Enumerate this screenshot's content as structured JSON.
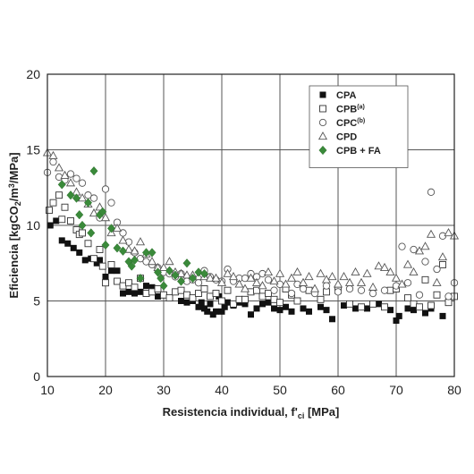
{
  "chart_data": {
    "type": "scatter",
    "xlabel": {
      "main": "Resistencia individual, f'",
      "sub": "ci",
      "unit": " [MPa]"
    },
    "ylabel": {
      "main": "Eficiencia [kgCO",
      "sub2": "2",
      "mid": "/m",
      "sup3": "3",
      "end": "/MPa]"
    },
    "xlim": [
      10,
      80
    ],
    "ylim": [
      0,
      20
    ],
    "xticks": [
      10,
      20,
      30,
      40,
      50,
      60,
      70,
      80
    ],
    "yticks": [
      0,
      5,
      10,
      15,
      20
    ],
    "grid": true,
    "legend_position": "top-right",
    "colors": {
      "green": "#3a8a3a",
      "black": "#111111",
      "grid": "#555555"
    },
    "series": [
      {
        "name": "CPA",
        "sup": "",
        "marker": "filled-square",
        "points": [
          [
            10.5,
            10
          ],
          [
            11.5,
            10.3
          ],
          [
            12.5,
            9
          ],
          [
            13.5,
            8.8
          ],
          [
            14.5,
            8.5
          ],
          [
            15.5,
            8.2
          ],
          [
            16.5,
            7.7
          ],
          [
            17.5,
            7.8
          ],
          [
            18.5,
            7.5
          ],
          [
            19,
            7.7
          ],
          [
            20,
            6.6
          ],
          [
            21,
            7
          ],
          [
            22,
            7
          ],
          [
            23,
            5.5
          ],
          [
            24,
            5.6
          ],
          [
            25,
            5.5
          ],
          [
            26,
            5.6
          ],
          [
            27,
            6
          ],
          [
            28,
            5.9
          ],
          [
            29,
            5.3
          ],
          [
            31,
            5.2
          ],
          [
            33,
            5
          ],
          [
            34,
            4.9
          ],
          [
            35,
            5
          ],
          [
            36,
            4.6
          ],
          [
            36.5,
            4.9
          ],
          [
            37,
            4.5
          ],
          [
            37.5,
            4.3
          ],
          [
            38,
            4.8
          ],
          [
            38.5,
            4.1
          ],
          [
            39,
            4.3
          ],
          [
            39.5,
            5.3
          ],
          [
            40,
            4.3
          ],
          [
            40.5,
            4.6
          ],
          [
            41,
            4.9
          ],
          [
            42,
            4.7
          ],
          [
            43,
            4.9
          ],
          [
            44,
            4.8
          ],
          [
            45,
            4.1
          ],
          [
            46,
            4.5
          ],
          [
            47,
            4.8
          ],
          [
            48,
            4.9
          ],
          [
            49,
            4.5
          ],
          [
            50,
            4.4
          ],
          [
            51,
            4.6
          ],
          [
            52,
            4.3
          ],
          [
            54,
            4.5
          ],
          [
            55,
            4.3
          ],
          [
            57,
            4.6
          ],
          [
            58,
            4.4
          ],
          [
            59,
            3.8
          ],
          [
            61,
            4.7
          ],
          [
            63,
            4.5
          ],
          [
            65,
            4.5
          ],
          [
            67,
            4.8
          ],
          [
            69,
            4.4
          ],
          [
            70,
            3.7
          ],
          [
            70.5,
            4
          ],
          [
            72,
            4.5
          ],
          [
            73,
            4.4
          ],
          [
            75,
            4.2
          ],
          [
            76,
            4.5
          ],
          [
            78,
            4
          ],
          [
            79,
            4.9
          ]
        ]
      },
      {
        "name": "CPB",
        "sup": "(a)",
        "marker": "open-square",
        "points": [
          [
            10.3,
            11
          ],
          [
            11,
            11.5
          ],
          [
            12,
            12
          ],
          [
            12.5,
            10.4
          ],
          [
            13,
            11.2
          ],
          [
            14,
            10.3
          ],
          [
            15,
            9.7
          ],
          [
            15.5,
            9.4
          ],
          [
            16,
            9.5
          ],
          [
            17,
            8.8
          ],
          [
            18,
            7.8
          ],
          [
            19,
            8.4
          ],
          [
            19.5,
            7.3
          ],
          [
            20,
            6.2
          ],
          [
            21,
            7.4
          ],
          [
            22,
            6.3
          ],
          [
            23,
            6
          ],
          [
            24,
            6.2
          ],
          [
            25,
            5.9
          ],
          [
            26,
            6.5
          ],
          [
            27,
            5.5
          ],
          [
            28,
            5.6
          ],
          [
            29,
            5.8
          ],
          [
            30,
            5.4
          ],
          [
            31,
            5.2
          ],
          [
            32,
            5.6
          ],
          [
            33,
            5.7
          ],
          [
            34,
            5.4
          ],
          [
            35,
            5.2
          ],
          [
            36,
            5.5
          ],
          [
            37,
            5.8
          ],
          [
            38,
            5.3
          ],
          [
            39,
            5.5
          ],
          [
            40,
            5
          ],
          [
            41,
            5.7
          ],
          [
            42,
            4.8
          ],
          [
            43,
            5.1
          ],
          [
            44,
            5.1
          ],
          [
            45,
            5.6
          ],
          [
            46,
            5.7
          ],
          [
            47,
            5.3
          ],
          [
            48,
            5.5
          ],
          [
            49,
            5.1
          ],
          [
            50,
            4.9
          ],
          [
            51,
            5.8
          ],
          [
            52,
            5.4
          ],
          [
            53,
            5
          ],
          [
            55,
            5.7
          ],
          [
            57,
            5.1
          ],
          [
            58,
            5.6
          ],
          [
            60,
            5.7
          ],
          [
            62,
            4.8
          ],
          [
            64,
            4.6
          ],
          [
            66,
            4.8
          ],
          [
            68,
            4.6
          ],
          [
            69,
            5.7
          ],
          [
            70,
            5.8
          ],
          [
            72,
            5.2
          ],
          [
            73,
            4.8
          ],
          [
            74,
            4.6
          ],
          [
            75,
            6.4
          ],
          [
            76,
            4.7
          ],
          [
            77,
            5.4
          ],
          [
            78,
            7.4
          ],
          [
            79,
            4.9
          ],
          [
            80,
            5.3
          ]
        ]
      },
      {
        "name": "CPC",
        "sup": "(b)",
        "marker": "open-circle",
        "points": [
          [
            10,
            13.5
          ],
          [
            11,
            14.2
          ],
          [
            12,
            13.2
          ],
          [
            13,
            13
          ],
          [
            14,
            13.4
          ],
          [
            15,
            13.1
          ],
          [
            16,
            12.8
          ],
          [
            17,
            12
          ],
          [
            18,
            11.8
          ],
          [
            19,
            10.5
          ],
          [
            20,
            12.4
          ],
          [
            21,
            11.5
          ],
          [
            22,
            10.2
          ],
          [
            23,
            9.5
          ],
          [
            24,
            8.9
          ],
          [
            25,
            8.2
          ],
          [
            26,
            7.8
          ],
          [
            27,
            7.6
          ],
          [
            28,
            7.4
          ],
          [
            29,
            7.2
          ],
          [
            30,
            6.9
          ],
          [
            31,
            6.8
          ],
          [
            32,
            6.6
          ],
          [
            33,
            6.8
          ],
          [
            34,
            6.3
          ],
          [
            35,
            6.4
          ],
          [
            36,
            6.2
          ],
          [
            37,
            7
          ],
          [
            38,
            6.6
          ],
          [
            39,
            6.4
          ],
          [
            40,
            6.3
          ],
          [
            41,
            7.1
          ],
          [
            42,
            6.3
          ],
          [
            43,
            6.5
          ],
          [
            44,
            6.5
          ],
          [
            45,
            6.8
          ],
          [
            46,
            6.6
          ],
          [
            47,
            6.8
          ],
          [
            48,
            6.4
          ],
          [
            49,
            5.7
          ],
          [
            50,
            6.1
          ],
          [
            52,
            5.5
          ],
          [
            53,
            6.1
          ],
          [
            54,
            5.8
          ],
          [
            56,
            5.5
          ],
          [
            58,
            6
          ],
          [
            60,
            5.6
          ],
          [
            62,
            5.8
          ],
          [
            64,
            5.7
          ],
          [
            66,
            5.5
          ],
          [
            68,
            5.7
          ],
          [
            70,
            6
          ],
          [
            71,
            8.6
          ],
          [
            72,
            6.2
          ],
          [
            73,
            8.4
          ],
          [
            74,
            5.4
          ],
          [
            75,
            7.6
          ],
          [
            76,
            12.2
          ],
          [
            77,
            7.1
          ],
          [
            78,
            9.3
          ],
          [
            79,
            5.3
          ],
          [
            80,
            6.2
          ]
        ]
      },
      {
        "name": "CPD",
        "sup": "",
        "marker": "open-triangle",
        "points": [
          [
            10,
            14.8
          ],
          [
            11,
            14.6
          ],
          [
            12,
            13.8
          ],
          [
            13,
            13.3
          ],
          [
            14,
            12.8
          ],
          [
            15,
            12.2
          ],
          [
            16,
            11.8
          ],
          [
            17,
            11.4
          ],
          [
            18,
            10.8
          ],
          [
            19,
            11.2
          ],
          [
            20,
            10.5
          ],
          [
            21,
            9.5
          ],
          [
            22,
            9.8
          ],
          [
            23,
            9
          ],
          [
            24,
            8.4
          ],
          [
            25,
            8.3
          ],
          [
            26,
            8.9
          ],
          [
            27,
            8.1
          ],
          [
            28,
            7.6
          ],
          [
            29,
            7.2
          ],
          [
            30,
            7.2
          ],
          [
            31,
            7.6
          ],
          [
            32,
            6.9
          ],
          [
            33,
            6.8
          ],
          [
            34,
            6.7
          ],
          [
            35,
            6.7
          ],
          [
            36,
            6.6
          ],
          [
            37,
            6.6
          ],
          [
            38,
            6.5
          ],
          [
            39,
            6.5
          ],
          [
            40,
            6.2
          ],
          [
            41,
            6.8
          ],
          [
            42,
            6.6
          ],
          [
            43,
            6.1
          ],
          [
            44,
            5.8
          ],
          [
            45,
            6.5
          ],
          [
            46,
            6.2
          ],
          [
            47,
            6
          ],
          [
            48,
            6.9
          ],
          [
            49,
            6.3
          ],
          [
            50,
            6.8
          ],
          [
            51,
            6.1
          ],
          [
            52,
            6.5
          ],
          [
            53,
            6.9
          ],
          [
            54,
            6.2
          ],
          [
            55,
            6.6
          ],
          [
            56,
            5.8
          ],
          [
            57,
            6.8
          ],
          [
            58,
            6.4
          ],
          [
            59,
            6.6
          ],
          [
            60,
            6.1
          ],
          [
            61,
            6.6
          ],
          [
            62,
            6.2
          ],
          [
            63,
            6.9
          ],
          [
            64,
            6.2
          ],
          [
            65,
            6.8
          ],
          [
            66,
            5.9
          ],
          [
            67,
            7.3
          ],
          [
            68,
            7.2
          ],
          [
            69,
            6.9
          ],
          [
            70,
            6.5
          ],
          [
            71,
            6.1
          ],
          [
            72,
            7.4
          ],
          [
            73,
            6.9
          ],
          [
            74,
            8.3
          ],
          [
            75,
            8.6
          ],
          [
            76,
            9.4
          ],
          [
            77,
            6.2
          ],
          [
            78,
            7.9
          ],
          [
            79,
            9.5
          ],
          [
            80,
            9.3
          ]
        ]
      },
      {
        "name": "CPB + FA",
        "sup": "",
        "marker": "filled-diamond",
        "points": [
          [
            12.5,
            12.7
          ],
          [
            14,
            12
          ],
          [
            15,
            11.8
          ],
          [
            15.5,
            10.7
          ],
          [
            16,
            10
          ],
          [
            17,
            11.5
          ],
          [
            17.5,
            9.5
          ],
          [
            18,
            13.6
          ],
          [
            19,
            10.7
          ],
          [
            19.5,
            10.9
          ],
          [
            20,
            8.7
          ],
          [
            21,
            9.8
          ],
          [
            22,
            8.5
          ],
          [
            23,
            8.3
          ],
          [
            24,
            7.6
          ],
          [
            24.5,
            7.3
          ],
          [
            25,
            7.7
          ],
          [
            26,
            6.5
          ],
          [
            27,
            8.2
          ],
          [
            28,
            8.2
          ],
          [
            29,
            6.9
          ],
          [
            29.5,
            6.5
          ],
          [
            30,
            6
          ],
          [
            31,
            7
          ],
          [
            32,
            6.7
          ],
          [
            33,
            6.3
          ],
          [
            34,
            7.5
          ],
          [
            35,
            6.5
          ],
          [
            36,
            6.9
          ],
          [
            37,
            6.8
          ]
        ]
      }
    ]
  }
}
